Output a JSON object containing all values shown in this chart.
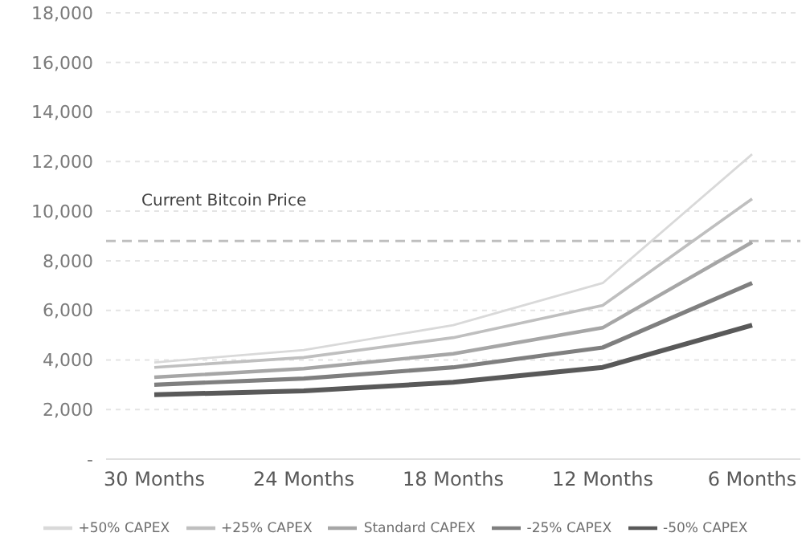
{
  "chart_data": {
    "type": "line",
    "categories": [
      "30 Months",
      "24 Months",
      "18 Months",
      "12 Months",
      "6 Months"
    ],
    "series": [
      {
        "name": "+50% CAPEX",
        "color": "#d9d9d9",
        "values": [
          3900,
          4400,
          5400,
          7100,
          12300
        ]
      },
      {
        "name": "+25% CAPEX",
        "color": "#bfbfbf",
        "values": [
          3700,
          4100,
          4900,
          6200,
          10500
        ]
      },
      {
        "name": "Standard CAPEX",
        "color": "#a6a6a6",
        "values": [
          3300,
          3650,
          4250,
          5300,
          8750
        ]
      },
      {
        "name": "-25% CAPEX",
        "color": "#7f7f7f",
        "values": [
          3000,
          3250,
          3700,
          4500,
          7100
        ]
      },
      {
        "name": "-50% CAPEX",
        "color": "#595959",
        "values": [
          2600,
          2750,
          3100,
          3700,
          5400
        ]
      }
    ],
    "ylim": [
      0,
      18000
    ],
    "yticks": [
      {
        "value": 0,
        "label": "-"
      },
      {
        "value": 2000,
        "label": "2,000"
      },
      {
        "value": 4000,
        "label": "4,000"
      },
      {
        "value": 6000,
        "label": "6,000"
      },
      {
        "value": 8000,
        "label": "8,000"
      },
      {
        "value": 10000,
        "label": "10,000"
      },
      {
        "value": 12000,
        "label": "12,000"
      },
      {
        "value": 14000,
        "label": "14,000"
      },
      {
        "value": 16000,
        "label": "16,000"
      },
      {
        "value": 18000,
        "label": "18,000"
      }
    ],
    "ref_lines": [
      {
        "axis": "y",
        "value": 8800,
        "label": "Current Bitcoin Price",
        "color": "#bfbfbf",
        "line_style": "dashed"
      }
    ],
    "grid": "y",
    "legend": "bottom",
    "marker": "none",
    "line_style": "solid"
  }
}
